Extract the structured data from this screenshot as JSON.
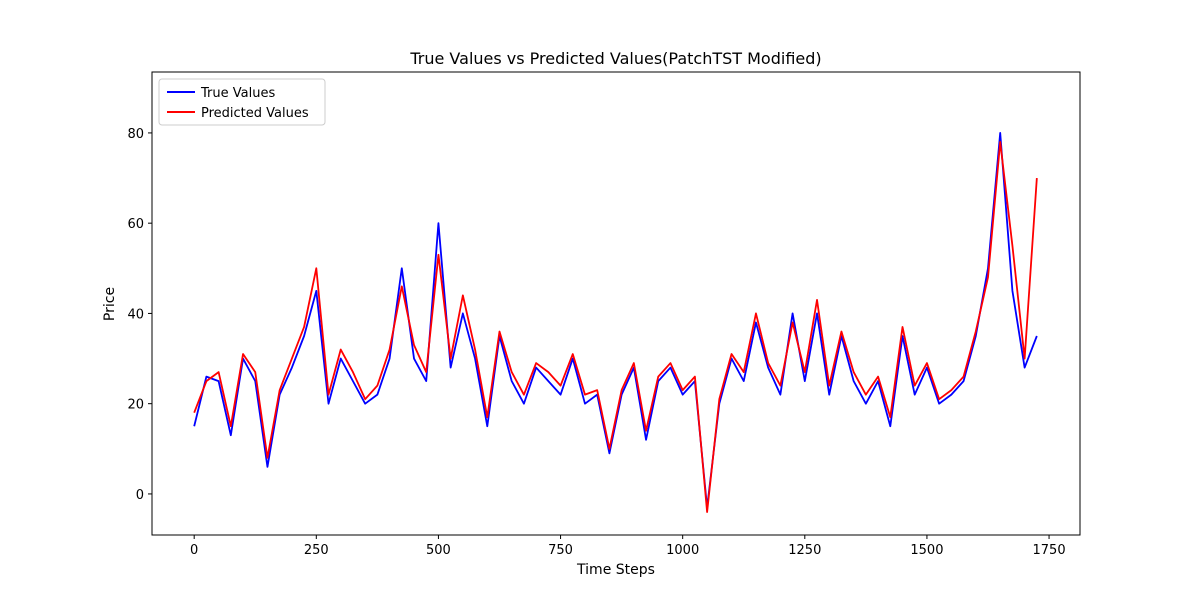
{
  "chart_data": {
    "type": "line",
    "title": "True Values vs Predicted Values(PatchTST Modified)",
    "x_label": "Time Steps",
    "y_label": "Price",
    "x": [
      0,
      25,
      50,
      75,
      100,
      125,
      150,
      175,
      200,
      225,
      250,
      275,
      300,
      325,
      350,
      375,
      400,
      425,
      450,
      475,
      500,
      525,
      550,
      575,
      600,
      625,
      650,
      675,
      700,
      725,
      750,
      775,
      800,
      825,
      850,
      875,
      900,
      925,
      950,
      975,
      1000,
      1025,
      1050,
      1075,
      1100,
      1125,
      1150,
      1175,
      1200,
      1225,
      1250,
      1275,
      1300,
      1325,
      1350,
      1375,
      1400,
      1425,
      1450,
      1475,
      1500,
      1525,
      1550,
      1575,
      1600,
      1625,
      1650,
      1675,
      1700,
      1725
    ],
    "series": [
      {
        "name": "True Values",
        "color": "#0000ff",
        "values": [
          15,
          26,
          25,
          13,
          30,
          25,
          6,
          22,
          28,
          35,
          45,
          20,
          30,
          25,
          20,
          22,
          30,
          50,
          30,
          25,
          60,
          28,
          40,
          30,
          15,
          35,
          25,
          20,
          28,
          25,
          22,
          30,
          20,
          22,
          9,
          22,
          28,
          12,
          25,
          28,
          22,
          25,
          -3,
          20,
          30,
          25,
          38,
          28,
          22,
          40,
          25,
          40,
          22,
          35,
          25,
          20,
          25,
          15,
          35,
          22,
          28,
          20,
          22,
          25,
          35,
          50,
          80,
          45,
          28,
          35
        ]
      },
      {
        "name": "Predicted Values",
        "color": "#ff0000",
        "values": [
          18,
          25,
          27,
          15,
          31,
          27,
          8,
          23,
          30,
          37,
          50,
          22,
          32,
          27,
          21,
          24,
          32,
          46,
          33,
          27,
          53,
          30,
          44,
          32,
          17,
          36,
          27,
          22,
          29,
          27,
          24,
          31,
          22,
          23,
          10,
          23,
          29,
          14,
          26,
          29,
          23,
          26,
          -4,
          21,
          31,
          27,
          40,
          29,
          24,
          38,
          27,
          43,
          24,
          36,
          27,
          22,
          26,
          17,
          37,
          24,
          29,
          21,
          23,
          26,
          36,
          48,
          78,
          55,
          30,
          70
        ]
      }
    ],
    "xlim": [
      -86.35,
      1813.35
    ],
    "xticks": [
      0,
      250,
      500,
      750,
      1000,
      1250,
      1500,
      1750
    ],
    "ylim": [
      -9.1,
      93.5
    ],
    "yticks": [
      0,
      20,
      40,
      60,
      80
    ],
    "legend": "upper left"
  }
}
